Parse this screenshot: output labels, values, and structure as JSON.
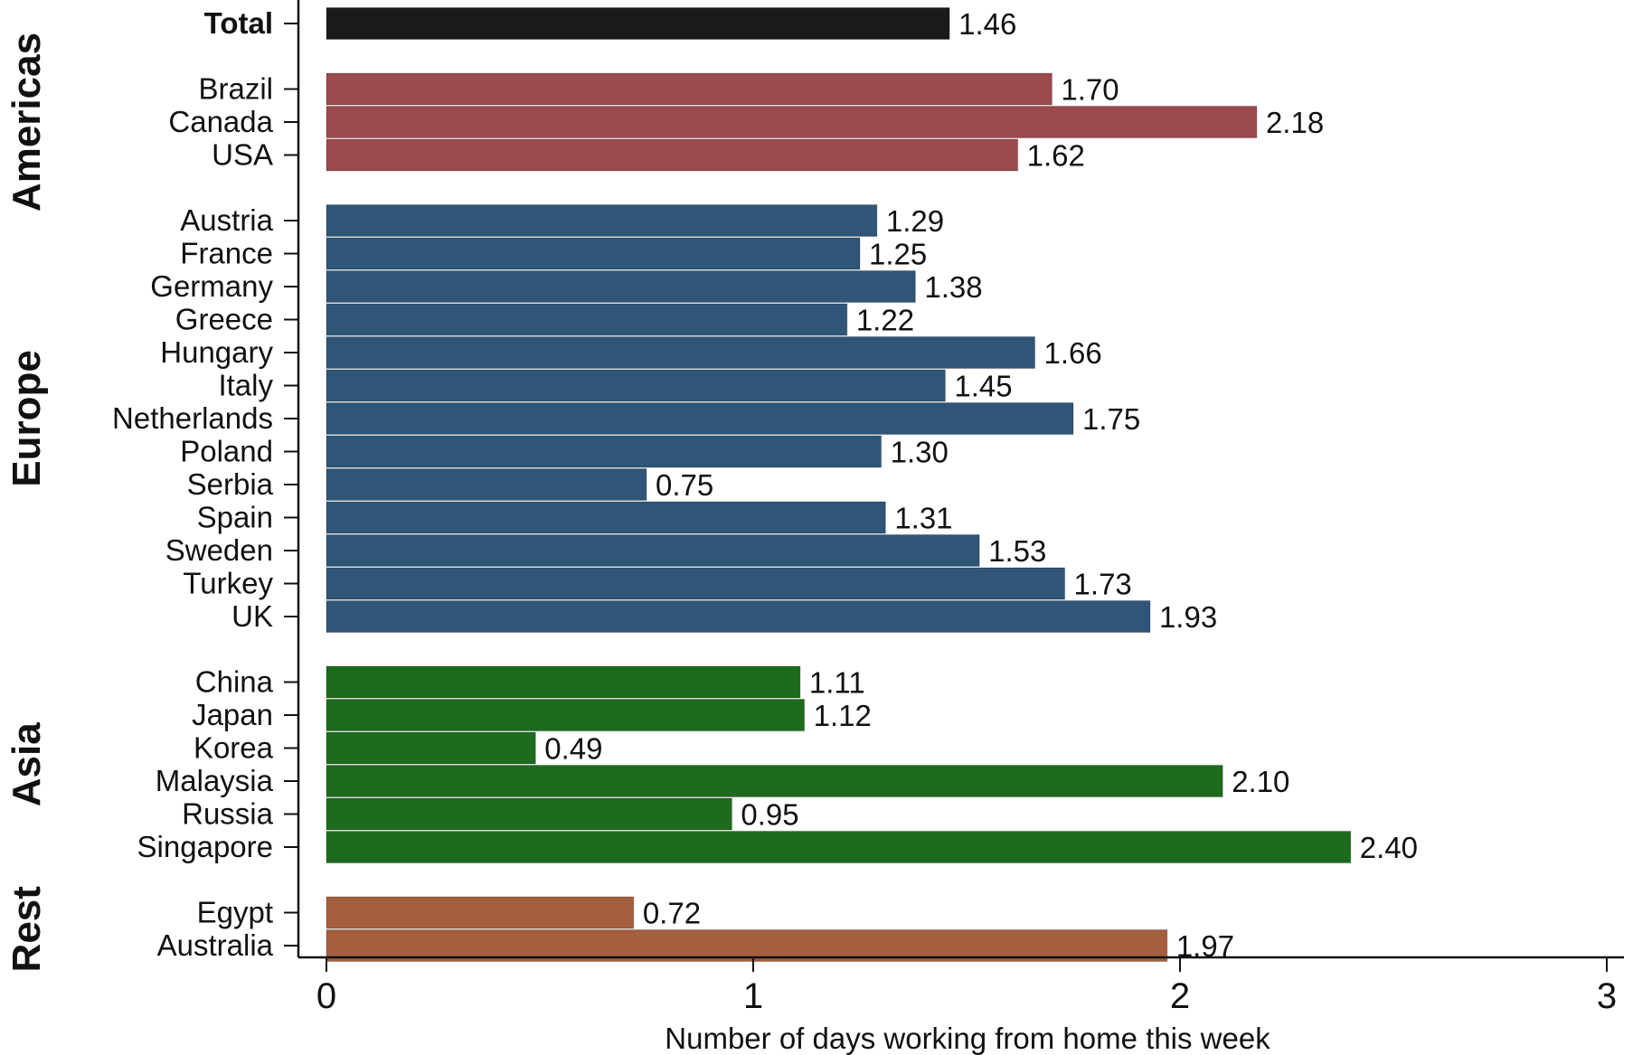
{
  "chart_data": {
    "type": "bar",
    "orientation": "horizontal",
    "xlabel": "Number of days working from home this week",
    "xlim": [
      0,
      3
    ],
    "xticks": [
      "0",
      "1",
      "2",
      "3"
    ],
    "grid": false,
    "legend": "none",
    "groups": [
      {
        "name": "",
        "color": "#1a1a1a",
        "bars": [
          {
            "label": "Total",
            "value": 1.46,
            "value_label": "1.46",
            "bold": true
          }
        ]
      },
      {
        "name": "Americas",
        "color": "#9b4a4f",
        "bars": [
          {
            "label": "Brazil",
            "value": 1.7,
            "value_label": "1.70"
          },
          {
            "label": "Canada",
            "value": 2.18,
            "value_label": "2.18"
          },
          {
            "label": "USA",
            "value": 1.62,
            "value_label": "1.62"
          }
        ]
      },
      {
        "name": "Europe",
        "color": "#2f5678",
        "bars": [
          {
            "label": "Austria",
            "value": 1.29,
            "value_label": "1.29"
          },
          {
            "label": "France",
            "value": 1.25,
            "value_label": "1.25"
          },
          {
            "label": "Germany",
            "value": 1.38,
            "value_label": "1.38"
          },
          {
            "label": "Greece",
            "value": 1.22,
            "value_label": "1.22"
          },
          {
            "label": "Hungary",
            "value": 1.66,
            "value_label": "1.66"
          },
          {
            "label": "Italy",
            "value": 1.45,
            "value_label": "1.45"
          },
          {
            "label": "Netherlands",
            "value": 1.75,
            "value_label": "1.75"
          },
          {
            "label": "Poland",
            "value": 1.3,
            "value_label": "1.30"
          },
          {
            "label": "Serbia",
            "value": 0.75,
            "value_label": "0.75"
          },
          {
            "label": "Spain",
            "value": 1.31,
            "value_label": "1.31"
          },
          {
            "label": "Sweden",
            "value": 1.53,
            "value_label": "1.53"
          },
          {
            "label": "Turkey",
            "value": 1.73,
            "value_label": "1.73"
          },
          {
            "label": "UK",
            "value": 1.93,
            "value_label": "1.93"
          }
        ]
      },
      {
        "name": "Asia",
        "color": "#1e6b1e",
        "bars": [
          {
            "label": "China",
            "value": 1.11,
            "value_label": "1.11"
          },
          {
            "label": "Japan",
            "value": 1.12,
            "value_label": "1.12"
          },
          {
            "label": "Korea",
            "value": 0.49,
            "value_label": "0.49"
          },
          {
            "label": "Malaysia",
            "value": 2.1,
            "value_label": "2.10"
          },
          {
            "label": "Russia",
            "value": 0.95,
            "value_label": "0.95"
          },
          {
            "label": "Singapore",
            "value": 2.4,
            "value_label": "2.40"
          }
        ]
      },
      {
        "name": "Rest",
        "color": "#a45f3e",
        "bars": [
          {
            "label": "Egypt",
            "value": 0.72,
            "value_label": "0.72"
          },
          {
            "label": "Australia",
            "value": 1.97,
            "value_label": "1.97"
          }
        ]
      }
    ]
  }
}
